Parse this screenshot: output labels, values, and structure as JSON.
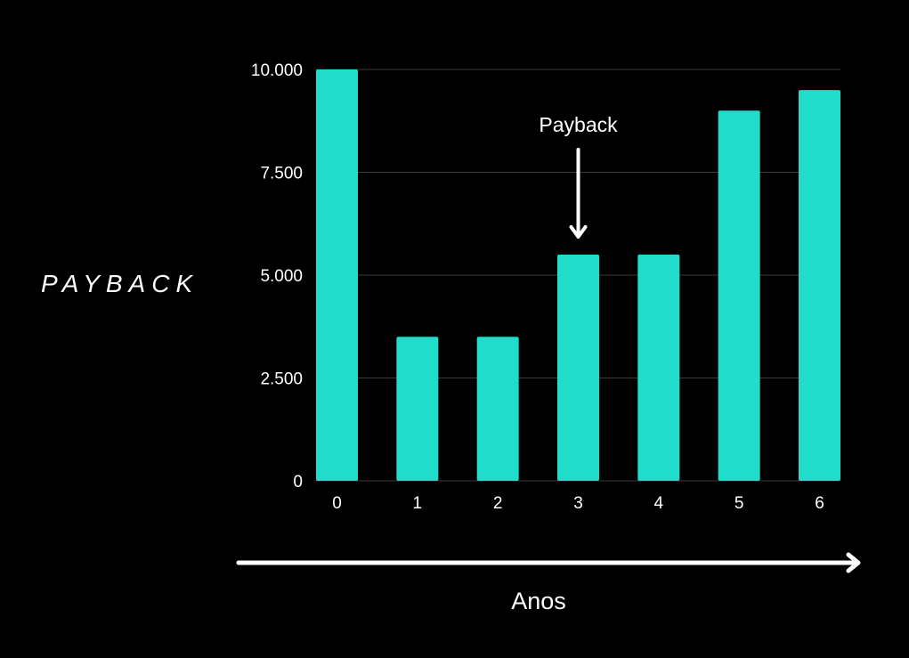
{
  "side_title": "PAYBACK",
  "colors": {
    "background": "#000000",
    "bar": "#22DCCB",
    "text": "#ffffff",
    "grid": "#3a3a3a"
  },
  "chart_data": {
    "type": "bar",
    "categories": [
      "0",
      "1",
      "2",
      "3",
      "4",
      "5",
      "6"
    ],
    "values": [
      10000,
      3500,
      3500,
      5500,
      5500,
      9000,
      9500
    ],
    "ylim": [
      0,
      10000
    ],
    "yticks": [
      0,
      2500,
      5000,
      7500,
      10000
    ],
    "ytick_labels": [
      "0",
      "2.500",
      "5.000",
      "7.500",
      "10.000"
    ],
    "xlabel": "Anos",
    "ylabel": "",
    "grid": true,
    "annotation": {
      "text": "Payback",
      "category": "3"
    }
  }
}
